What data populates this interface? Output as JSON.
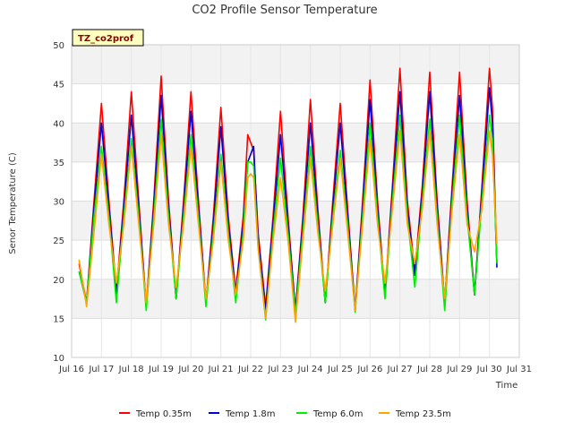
{
  "chart_data": {
    "type": "line",
    "title": "CO2 Profile Sensor Temperature",
    "xlabel": "Time",
    "ylabel": "Senor Temperature (C)",
    "badge": "TZ_co2prof",
    "ylim": [
      10,
      50
    ],
    "yticks": [
      10,
      15,
      20,
      25,
      30,
      35,
      40,
      45,
      50
    ],
    "xlim": [
      16,
      31
    ],
    "xticks": [
      16,
      17,
      18,
      19,
      20,
      21,
      22,
      23,
      24,
      25,
      26,
      27,
      28,
      29,
      30,
      31
    ],
    "xtick_labels": [
      "Jul 16",
      "Jul 17",
      "Jul 18",
      "Jul 19",
      "Jul 20",
      "Jul 21",
      "Jul 22",
      "Jul 23",
      "Jul 24",
      "Jul 25",
      "Jul 26",
      "Jul 27",
      "Jul 28",
      "Jul 29",
      "Jul 30",
      "Jul 31"
    ],
    "grid": true,
    "legend_position": "bottom",
    "series": [
      {
        "name": "Temp 0.35m",
        "color": "#ff0000",
        "points": [
          [
            16.25,
            22
          ],
          [
            16.5,
            17
          ],
          [
            16.75,
            30
          ],
          [
            17.0,
            42.5
          ],
          [
            17.25,
            30
          ],
          [
            17.5,
            18.5
          ],
          [
            17.75,
            30
          ],
          [
            18.0,
            44
          ],
          [
            18.25,
            30
          ],
          [
            18.5,
            16.5
          ],
          [
            18.75,
            30
          ],
          [
            19.0,
            46
          ],
          [
            19.25,
            30
          ],
          [
            19.5,
            17.5
          ],
          [
            19.75,
            30
          ],
          [
            20.0,
            44
          ],
          [
            20.25,
            30
          ],
          [
            20.5,
            17
          ],
          [
            20.75,
            28
          ],
          [
            21.0,
            42
          ],
          [
            21.25,
            28
          ],
          [
            21.5,
            18.5
          ],
          [
            21.75,
            28
          ],
          [
            21.9,
            38.5
          ],
          [
            22.0,
            37.5
          ],
          [
            22.1,
            36.5
          ],
          [
            22.25,
            26
          ],
          [
            22.5,
            16.5
          ],
          [
            22.75,
            28
          ],
          [
            23.0,
            41.5
          ],
          [
            23.25,
            28
          ],
          [
            23.5,
            16
          ],
          [
            23.75,
            28
          ],
          [
            24.0,
            43
          ],
          [
            24.25,
            29
          ],
          [
            24.5,
            17
          ],
          [
            24.75,
            30
          ],
          [
            25.0,
            42.5
          ],
          [
            25.25,
            29
          ],
          [
            25.5,
            16
          ],
          [
            25.75,
            30
          ],
          [
            26.0,
            45.5
          ],
          [
            26.25,
            30
          ],
          [
            26.5,
            18
          ],
          [
            26.75,
            32
          ],
          [
            27.0,
            47
          ],
          [
            27.25,
            30
          ],
          [
            27.5,
            21
          ],
          [
            27.75,
            32
          ],
          [
            28.0,
            46.5
          ],
          [
            28.25,
            30
          ],
          [
            28.5,
            17
          ],
          [
            28.75,
            32
          ],
          [
            29.0,
            46.5
          ],
          [
            29.25,
            30
          ],
          [
            29.5,
            18
          ],
          [
            29.75,
            32
          ],
          [
            30.0,
            47
          ],
          [
            30.1,
            42
          ],
          [
            30.25,
            22
          ]
        ]
      },
      {
        "name": "Temp 1.8m",
        "color": "#0000cc",
        "points": [
          [
            16.25,
            21
          ],
          [
            16.5,
            17
          ],
          [
            16.75,
            29
          ],
          [
            17.0,
            40
          ],
          [
            17.25,
            29
          ],
          [
            17.5,
            18
          ],
          [
            17.75,
            29
          ],
          [
            18.0,
            41
          ],
          [
            18.25,
            29
          ],
          [
            18.5,
            16.5
          ],
          [
            18.75,
            29
          ],
          [
            19.0,
            43.5
          ],
          [
            19.25,
            29
          ],
          [
            19.5,
            17.5
          ],
          [
            19.75,
            29
          ],
          [
            20.0,
            41.5
          ],
          [
            20.25,
            29
          ],
          [
            20.5,
            17
          ],
          [
            20.75,
            27
          ],
          [
            21.0,
            39.5
          ],
          [
            21.25,
            27
          ],
          [
            21.5,
            18
          ],
          [
            21.75,
            27
          ],
          [
            21.9,
            35
          ],
          [
            22.0,
            36
          ],
          [
            22.1,
            37
          ],
          [
            22.25,
            25
          ],
          [
            22.5,
            16
          ],
          [
            22.75,
            27
          ],
          [
            23.0,
            38.5
          ],
          [
            23.25,
            27
          ],
          [
            23.5,
            16
          ],
          [
            23.75,
            27
          ],
          [
            24.0,
            40
          ],
          [
            24.25,
            28
          ],
          [
            24.5,
            17
          ],
          [
            24.75,
            29
          ],
          [
            25.0,
            40
          ],
          [
            25.25,
            28
          ],
          [
            25.5,
            16
          ],
          [
            25.75,
            29
          ],
          [
            26.0,
            43
          ],
          [
            26.25,
            29
          ],
          [
            26.5,
            18
          ],
          [
            26.75,
            31
          ],
          [
            27.0,
            44
          ],
          [
            27.25,
            29
          ],
          [
            27.5,
            20.5
          ],
          [
            27.75,
            31
          ],
          [
            28.0,
            44
          ],
          [
            28.25,
            29
          ],
          [
            28.5,
            17
          ],
          [
            28.75,
            31
          ],
          [
            29.0,
            43.5
          ],
          [
            29.25,
            29
          ],
          [
            29.5,
            18
          ],
          [
            29.75,
            31
          ],
          [
            30.0,
            44.5
          ],
          [
            30.1,
            40
          ],
          [
            30.25,
            21.5
          ]
        ]
      },
      {
        "name": "Temp 6.0m",
        "color": "#00ee00",
        "points": [
          [
            16.25,
            21
          ],
          [
            16.5,
            17
          ],
          [
            16.75,
            28
          ],
          [
            17.0,
            37
          ],
          [
            17.25,
            28
          ],
          [
            17.5,
            17
          ],
          [
            17.75,
            28
          ],
          [
            18.0,
            38
          ],
          [
            18.25,
            28
          ],
          [
            18.5,
            16
          ],
          [
            18.75,
            28
          ],
          [
            19.0,
            40.5
          ],
          [
            19.25,
            28
          ],
          [
            19.5,
            17.5
          ],
          [
            19.75,
            28
          ],
          [
            20.0,
            38.5
          ],
          [
            20.25,
            28
          ],
          [
            20.5,
            16.5
          ],
          [
            20.75,
            26
          ],
          [
            21.0,
            36
          ],
          [
            21.25,
            26
          ],
          [
            21.5,
            17
          ],
          [
            21.75,
            26
          ],
          [
            21.9,
            35
          ],
          [
            22.0,
            35
          ],
          [
            22.1,
            34.5
          ],
          [
            22.25,
            24
          ],
          [
            22.5,
            14.8
          ],
          [
            22.75,
            26
          ],
          [
            23.0,
            35.5
          ],
          [
            23.25,
            26
          ],
          [
            23.5,
            15.5
          ],
          [
            23.75,
            26
          ],
          [
            24.0,
            37
          ],
          [
            24.25,
            27
          ],
          [
            24.5,
            17
          ],
          [
            24.75,
            28
          ],
          [
            25.0,
            36.5
          ],
          [
            25.25,
            27
          ],
          [
            25.5,
            15.8
          ],
          [
            25.75,
            28
          ],
          [
            26.0,
            40
          ],
          [
            26.25,
            28
          ],
          [
            26.5,
            17.5
          ],
          [
            26.75,
            30
          ],
          [
            27.0,
            41
          ],
          [
            27.25,
            28
          ],
          [
            27.5,
            19
          ],
          [
            27.75,
            30
          ],
          [
            28.0,
            40.5
          ],
          [
            28.25,
            28
          ],
          [
            28.5,
            16
          ],
          [
            28.75,
            30
          ],
          [
            29.0,
            41
          ],
          [
            29.25,
            28
          ],
          [
            29.5,
            18
          ],
          [
            29.75,
            30
          ],
          [
            30.0,
            41
          ],
          [
            30.1,
            38
          ],
          [
            30.25,
            22
          ]
        ]
      },
      {
        "name": "Temp 23.5m",
        "color": "#ffa500",
        "points": [
          [
            16.25,
            22.5
          ],
          [
            16.5,
            16.5
          ],
          [
            16.75,
            26
          ],
          [
            17.0,
            36
          ],
          [
            17.25,
            27
          ],
          [
            17.5,
            19.5
          ],
          [
            17.75,
            27
          ],
          [
            18.0,
            37
          ],
          [
            18.25,
            27
          ],
          [
            18.5,
            17
          ],
          [
            18.75,
            27
          ],
          [
            19.0,
            38.5
          ],
          [
            19.25,
            27
          ],
          [
            19.5,
            19
          ],
          [
            19.75,
            27
          ],
          [
            20.0,
            37
          ],
          [
            20.25,
            27
          ],
          [
            20.5,
            17.5
          ],
          [
            20.75,
            25
          ],
          [
            21.0,
            35
          ],
          [
            21.25,
            25
          ],
          [
            21.5,
            18
          ],
          [
            21.75,
            25
          ],
          [
            21.9,
            33
          ],
          [
            22.0,
            33.5
          ],
          [
            22.1,
            33
          ],
          [
            22.25,
            24
          ],
          [
            22.5,
            15
          ],
          [
            22.75,
            25
          ],
          [
            23.0,
            33
          ],
          [
            23.25,
            25
          ],
          [
            23.5,
            14.5
          ],
          [
            23.75,
            25
          ],
          [
            24.0,
            35.5
          ],
          [
            24.25,
            26
          ],
          [
            24.5,
            18.5
          ],
          [
            24.75,
            27
          ],
          [
            25.0,
            35.5
          ],
          [
            25.25,
            26
          ],
          [
            25.5,
            16
          ],
          [
            25.75,
            27
          ],
          [
            26.0,
            38
          ],
          [
            26.25,
            27
          ],
          [
            26.5,
            19.5
          ],
          [
            26.75,
            29
          ],
          [
            27.0,
            39
          ],
          [
            27.25,
            27
          ],
          [
            27.5,
            22
          ],
          [
            27.75,
            29
          ],
          [
            28.0,
            39
          ],
          [
            28.25,
            27
          ],
          [
            28.5,
            17.5
          ],
          [
            28.75,
            29
          ],
          [
            29.0,
            38.5
          ],
          [
            29.25,
            27
          ],
          [
            29.5,
            23.5
          ],
          [
            29.75,
            29
          ],
          [
            30.0,
            39
          ],
          [
            30.1,
            36
          ],
          [
            30.25,
            24.5
          ]
        ]
      }
    ]
  }
}
